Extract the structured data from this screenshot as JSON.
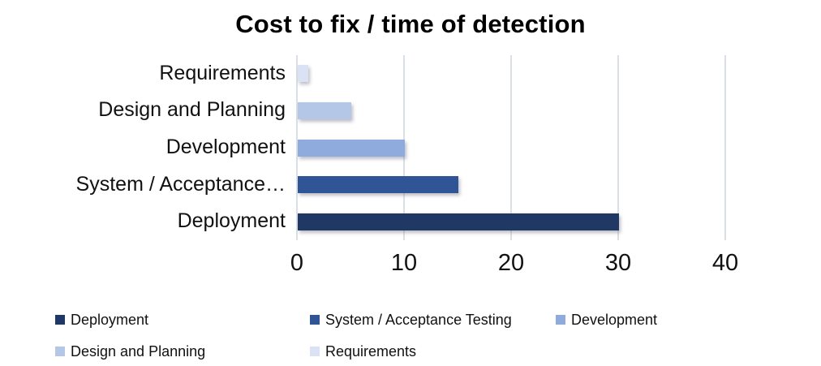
{
  "title": "Cost to fix / time of detection",
  "chart_data": {
    "type": "bar",
    "orientation": "horizontal",
    "title": "Cost to fix / time of detection",
    "categories": [
      "Requirements",
      "Design and Planning",
      "Development",
      "System / Acceptance…",
      "Deployment"
    ],
    "values": [
      1,
      5,
      10,
      15,
      30
    ],
    "series_colors": [
      "#dae3f3",
      "#b4c7e7",
      "#8faadc",
      "#2f5597",
      "#1f3864"
    ],
    "xlabel": "",
    "ylabel": "",
    "xlim": [
      0,
      40
    ],
    "xticks": [
      0,
      10,
      20,
      30,
      40
    ],
    "grid": true,
    "legend_position": "bottom"
  },
  "legend": {
    "items": [
      {
        "label": "Deployment",
        "color": "#1f3864"
      },
      {
        "label": "System / Acceptance Testing",
        "color": "#2f5597"
      },
      {
        "label": "Development",
        "color": "#8faadc"
      },
      {
        "label": "Design and Planning",
        "color": "#b4c7e7"
      },
      {
        "label": "Requirements",
        "color": "#dae3f3"
      }
    ]
  },
  "colors": {
    "gridline": "#dbe0e6",
    "text": "#000000",
    "background": "#ffffff"
  }
}
